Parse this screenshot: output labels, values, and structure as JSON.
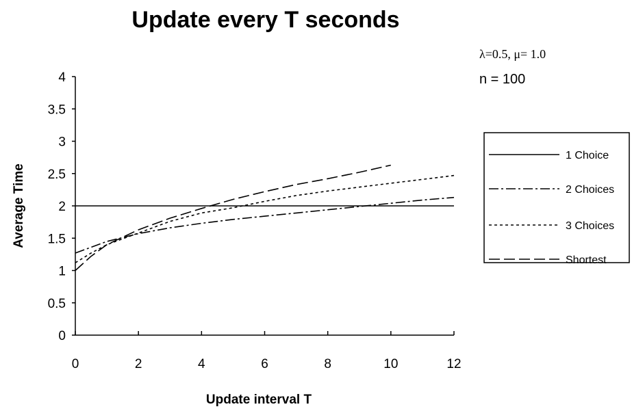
{
  "chart_data": {
    "type": "line",
    "title": "Update every T seconds",
    "xlabel": "Update interval T",
    "ylabel": "Average Time",
    "xlim": [
      0,
      12
    ],
    "ylim": [
      0,
      4
    ],
    "xticks": [
      "0",
      "2",
      "4",
      "6",
      "8",
      "10",
      "12"
    ],
    "yticks": [
      "0",
      "0.5",
      "1",
      "1.5",
      "2",
      "2.5",
      "3",
      "3.5",
      "4"
    ],
    "grid": false,
    "legend_position": "right",
    "annotations": [
      "λ=0.5, μ= 1.0",
      "n = 100"
    ],
    "series": [
      {
        "name": "1 Choice",
        "line_style": "solid",
        "x": [
          0,
          12
        ],
        "y": [
          2.0,
          2.0
        ]
      },
      {
        "name": "2 Choices",
        "line_style": "dash-dot",
        "x": [
          0,
          1,
          2,
          3,
          4,
          5,
          6,
          7,
          8,
          9,
          10,
          11,
          12
        ],
        "y": [
          1.27,
          1.45,
          1.57,
          1.66,
          1.73,
          1.79,
          1.84,
          1.89,
          1.94,
          1.99,
          2.04,
          2.09,
          2.13
        ]
      },
      {
        "name": "3 Choices",
        "line_style": "dotted",
        "x": [
          0,
          0.5,
          1,
          2,
          3,
          4,
          5,
          6,
          7,
          8,
          9,
          10,
          11,
          12
        ],
        "y": [
          1.12,
          1.27,
          1.4,
          1.58,
          1.76,
          1.89,
          1.97,
          2.07,
          2.16,
          2.23,
          2.29,
          2.35,
          2.41,
          2.47
        ]
      },
      {
        "name": "Shortest",
        "line_style": "long-dash",
        "x": [
          0,
          0.5,
          1,
          2,
          3,
          4,
          5,
          6,
          7,
          8,
          9,
          10
        ],
        "y": [
          1.0,
          1.22,
          1.4,
          1.63,
          1.81,
          1.96,
          2.1,
          2.22,
          2.33,
          2.42,
          2.52,
          2.63
        ]
      }
    ]
  }
}
